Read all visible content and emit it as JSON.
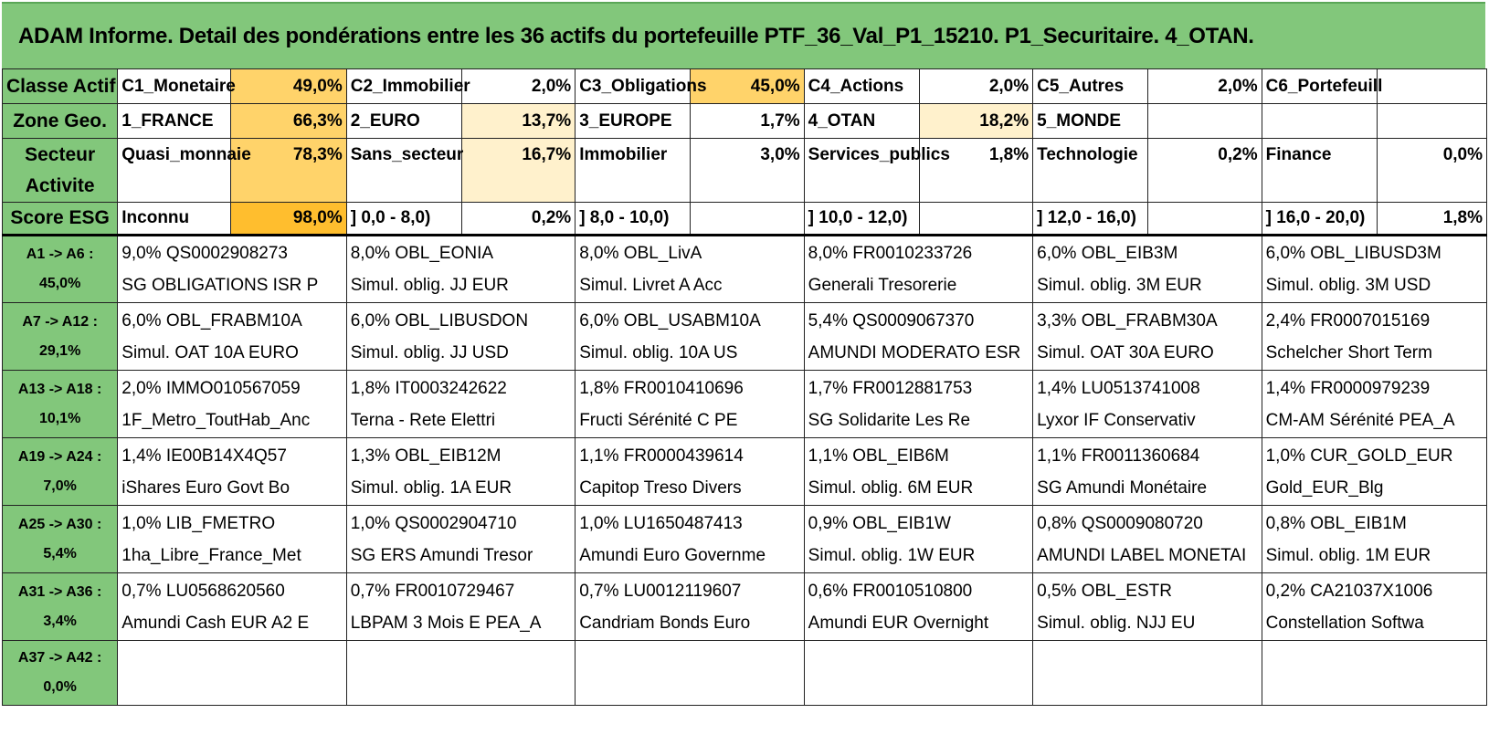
{
  "title": "ADAM Informe. Detail des pondérations entre les 36 actifs du portefeuille PTF_36_Val_P1_15210. P1_Securitaire. 4_OTAN.",
  "summary": [
    {
      "header": "Classe Actif",
      "cells": [
        {
          "label": "C1_Monetaire",
          "pct": "49,0%",
          "shade": "pc1"
        },
        {
          "label": "C2_Immobilier",
          "pct": "2,0%",
          "shade": "pc0"
        },
        {
          "label": "C3_Obligations",
          "pct": "45,0%",
          "shade": "pc1"
        },
        {
          "label": "C4_Actions",
          "pct": "2,0%",
          "shade": "pc0"
        },
        {
          "label": "C5_Autres",
          "pct": "2,0%",
          "shade": "pc0"
        },
        {
          "label": "C6_Portefeuill",
          "pct": "",
          "shade": "pc0"
        }
      ]
    },
    {
      "header": "Zone Geo.",
      "cells": [
        {
          "label": "1_FRANCE",
          "pct": "66,3%",
          "shade": "pc1"
        },
        {
          "label": "2_EURO",
          "pct": "13,7%",
          "shade": "pc2"
        },
        {
          "label": "3_EUROPE",
          "pct": "1,7%",
          "shade": "pc0"
        },
        {
          "label": "4_OTAN",
          "pct": "18,2%",
          "shade": "pc2"
        },
        {
          "label": "5_MONDE",
          "pct": "",
          "shade": "pc0"
        },
        {
          "label": "",
          "pct": "",
          "shade": "pc0"
        }
      ]
    },
    {
      "header": "Secteur Activite",
      "cells": [
        {
          "label": "Quasi_monnaie",
          "pct": "78,3%",
          "shade": "pc1"
        },
        {
          "label": "Sans_secteur",
          "pct": "16,7%",
          "shade": "pc2"
        },
        {
          "label": "Immobilier",
          "pct": "3,0%",
          "shade": "pc0"
        },
        {
          "label": "Services_publics",
          "pct": "1,8%",
          "shade": "pc0"
        },
        {
          "label": "Technologie",
          "pct": "0,2%",
          "shade": "pc0"
        },
        {
          "label": "Finance",
          "pct": "0,0%",
          "shade": "pc0"
        }
      ]
    },
    {
      "header": "Score ESG",
      "cells": [
        {
          "label": "Inconnu",
          "pct": "98,0%",
          "shade": "pc3"
        },
        {
          "label": "] 0,0 - 8,0)",
          "pct": "0,2%",
          "shade": "pc0"
        },
        {
          "label": "] 8,0 - 10,0)",
          "pct": "",
          "shade": "pc0"
        },
        {
          "label": "] 10,0 - 12,0)",
          "pct": "",
          "shade": "pc0"
        },
        {
          "label": "] 12,0 - 16,0)",
          "pct": "",
          "shade": "pc0"
        },
        {
          "label": "] 16,0 - 20,0)",
          "pct": "1,8%",
          "shade": "pc0"
        }
      ]
    }
  ],
  "groups": [
    {
      "label": "A1 -> A6 :",
      "total": "45,0%",
      "assets": [
        {
          "line1": "9,0% QS0002908273",
          "line2": "SG OBLIGATIONS ISR P"
        },
        {
          "line1": "8,0% OBL_EONIA",
          "line2": "Simul. oblig. JJ EUR"
        },
        {
          "line1": "8,0% OBL_LivA",
          "line2": "Simul. Livret A Acc"
        },
        {
          "line1": "8,0% FR0010233726",
          "line2": "Generali Tresorerie"
        },
        {
          "line1": "6,0% OBL_EIB3M",
          "line2": "Simul. oblig. 3M EUR"
        },
        {
          "line1": "6,0% OBL_LIBUSD3M",
          "line2": "Simul. oblig. 3M USD"
        }
      ]
    },
    {
      "label": "A7 -> A12 :",
      "total": "29,1%",
      "assets": [
        {
          "line1": "6,0% OBL_FRABM10A",
          "line2": "Simul. OAT 10A EURO"
        },
        {
          "line1": "6,0% OBL_LIBUSDON",
          "line2": "Simul. oblig. JJ USD"
        },
        {
          "line1": "6,0% OBL_USABM10A",
          "line2": "Simul. oblig. 10A US"
        },
        {
          "line1": "5,4% QS0009067370",
          "line2": "AMUNDI MODERATO ESR"
        },
        {
          "line1": "3,3% OBL_FRABM30A",
          "line2": "Simul. OAT 30A EURO"
        },
        {
          "line1": "2,4% FR0007015169",
          "line2": "Schelcher Short Term"
        }
      ]
    },
    {
      "label": "A13 -> A18 :",
      "total": "10,1%",
      "assets": [
        {
          "line1": "2,0% IMMO010567059",
          "line2": "1F_Metro_ToutHab_Anc"
        },
        {
          "line1": "1,8% IT0003242622",
          "line2": "Terna - Rete Elettri"
        },
        {
          "line1": "1,8% FR0010410696",
          "line2": "Fructi Sérénité C PE"
        },
        {
          "line1": "1,7% FR0012881753",
          "line2": "SG Solidarite Les Re"
        },
        {
          "line1": "1,4% LU0513741008",
          "line2": "Lyxor IF Conservativ"
        },
        {
          "line1": "1,4% FR0000979239",
          "line2": "CM-AM Sérénité PEA_A"
        }
      ]
    },
    {
      "label": "A19 -> A24 :",
      "total": "7,0%",
      "assets": [
        {
          "line1": "1,4% IE00B14X4Q57",
          "line2": "iShares Euro Govt Bo"
        },
        {
          "line1": "1,3% OBL_EIB12M",
          "line2": "Simul. oblig. 1A EUR"
        },
        {
          "line1": "1,1% FR0000439614",
          "line2": "Capitop Treso Divers"
        },
        {
          "line1": "1,1% OBL_EIB6M",
          "line2": "Simul. oblig. 6M EUR"
        },
        {
          "line1": "1,1% FR0011360684",
          "line2": "SG Amundi Monétaire"
        },
        {
          "line1": "1,0% CUR_GOLD_EUR",
          "line2": "Gold_EUR_Blg"
        }
      ]
    },
    {
      "label": "A25 -> A30 :",
      "total": "5,4%",
      "assets": [
        {
          "line1": "1,0% LIB_FMETRO",
          "line2": "1ha_Libre_France_Met"
        },
        {
          "line1": "1,0% QS0002904710",
          "line2": "SG ERS Amundi Tresor"
        },
        {
          "line1": "1,0% LU1650487413",
          "line2": "Amundi Euro Governme"
        },
        {
          "line1": "0,9% OBL_EIB1W",
          "line2": "Simul. oblig. 1W EUR"
        },
        {
          "line1": "0,8% QS0009080720",
          "line2": "AMUNDI LABEL MONETAI"
        },
        {
          "line1": "0,8% OBL_EIB1M",
          "line2": "Simul. oblig. 1M EUR"
        }
      ]
    },
    {
      "label": "A31 -> A36 :",
      "total": "3,4%",
      "assets": [
        {
          "line1": "0,7% LU0568620560",
          "line2": "Amundi Cash EUR A2 E"
        },
        {
          "line1": "0,7% FR0010729467",
          "line2": "LBPAM 3 Mois E PEA_A"
        },
        {
          "line1": "0,7% LU0012119607",
          "line2": "Candriam Bonds Euro"
        },
        {
          "line1": "0,6% FR0010510800",
          "line2": "Amundi EUR Overnight"
        },
        {
          "line1": "0,5% OBL_ESTR",
          "line2": "Simul. oblig. NJJ EU"
        },
        {
          "line1": "0,2% CA21037X1006",
          "line2": "Constellation Softwa"
        }
      ]
    },
    {
      "label": "A37 -> A42 :",
      "total": "0,0%",
      "assets": [
        {
          "line1": "",
          "line2": ""
        },
        {
          "line1": "",
          "line2": ""
        },
        {
          "line1": "",
          "line2": ""
        },
        {
          "line1": "",
          "line2": ""
        },
        {
          "line1": "",
          "line2": ""
        },
        {
          "line1": "",
          "line2": ""
        }
      ]
    }
  ]
}
